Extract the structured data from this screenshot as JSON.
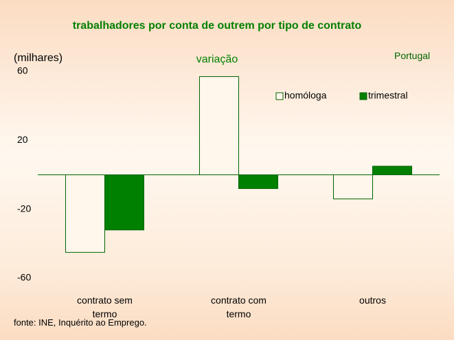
{
  "chart_data": {
    "type": "bar",
    "title": "trabalhadores por conta de outrem por tipo de contrato",
    "subtitle": "variação",
    "y_label": "(milhares)",
    "region": "Portugal",
    "source": "fonte: INE, Inquérito ao Emprego.",
    "categories": [
      "contrato sem termo",
      "contrato com termo",
      "outros"
    ],
    "series": [
      {
        "name": "homóloga",
        "color": "#fff6ec",
        "values": [
          -45,
          57,
          -14
        ]
      },
      {
        "name": "trimestral",
        "color": "#008000",
        "values": [
          -32,
          -8,
          5
        ]
      }
    ],
    "ylim": [
      -60,
      60
    ],
    "yticks": [
      -60,
      -20,
      20,
      60
    ],
    "grid": false,
    "legend": "top-right"
  }
}
